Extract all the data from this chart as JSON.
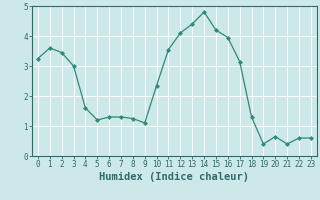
{
  "x": [
    0,
    1,
    2,
    3,
    4,
    5,
    6,
    7,
    8,
    9,
    10,
    11,
    12,
    13,
    14,
    15,
    16,
    17,
    18,
    19,
    20,
    21,
    22,
    23
  ],
  "y": [
    3.25,
    3.6,
    3.45,
    3.0,
    1.6,
    1.2,
    1.3,
    1.3,
    1.25,
    1.1,
    2.35,
    3.55,
    4.1,
    4.4,
    4.8,
    4.2,
    3.95,
    3.15,
    1.3,
    0.4,
    0.65,
    0.4,
    0.6,
    0.6
  ],
  "line_color": "#2e8b74",
  "marker": "D",
  "marker_size": 2.0,
  "bg_color": "#cce8e8",
  "grid_color": "#ffffff",
  "xlabel": "Humidex (Indice chaleur)",
  "ylim": [
    0,
    5
  ],
  "xlim": [
    -0.5,
    23.5
  ],
  "yticks": [
    0,
    1,
    2,
    3,
    4,
    5
  ],
  "xticks": [
    0,
    1,
    2,
    3,
    4,
    5,
    6,
    7,
    8,
    9,
    10,
    11,
    12,
    13,
    14,
    15,
    16,
    17,
    18,
    19,
    20,
    21,
    22,
    23
  ],
  "tick_label_fontsize": 5.5,
  "xlabel_fontsize": 7.5,
  "axis_color": "#2e6b6b"
}
